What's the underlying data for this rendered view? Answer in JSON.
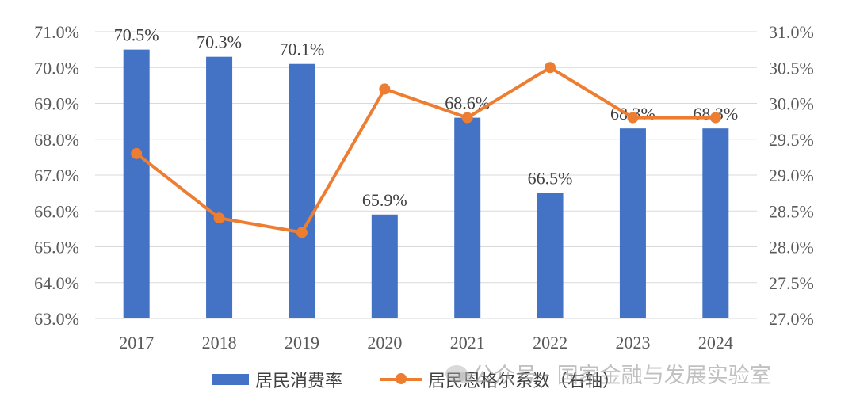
{
  "chart_data": {
    "type": "bar+line",
    "categories": [
      "2017",
      "2018",
      "2019",
      "2020",
      "2021",
      "2022",
      "2023",
      "2024"
    ],
    "series": [
      {
        "name": "居民消费率",
        "type": "bar",
        "axis": "left",
        "values": [
          70.5,
          70.3,
          70.1,
          65.9,
          68.6,
          66.5,
          68.3,
          68.3
        ],
        "labels": [
          "70.5%",
          "70.3%",
          "70.1%",
          "65.9%",
          "68.6%",
          "66.5%",
          "68.3%",
          "68.3%"
        ],
        "color": "#4472C4"
      },
      {
        "name": "居民恩格尔系数（右轴）",
        "type": "line",
        "axis": "right",
        "values": [
          29.3,
          28.4,
          28.2,
          30.2,
          29.8,
          30.5,
          29.8,
          29.8
        ],
        "color": "#ED7D31"
      }
    ],
    "left_axis": {
      "ylim": [
        63,
        71
      ],
      "ticks": [
        "63.0%",
        "64.0%",
        "65.0%",
        "66.0%",
        "67.0%",
        "68.0%",
        "69.0%",
        "70.0%",
        "71.0%"
      ]
    },
    "right_axis": {
      "ylim": [
        27,
        31
      ],
      "ticks": [
        "27.0%",
        "27.5%",
        "28.0%",
        "28.5%",
        "29.0%",
        "29.5%",
        "30.0%",
        "30.5%",
        "31.0%"
      ]
    },
    "grid": true,
    "legend_position": "bottom"
  },
  "legend": {
    "bar_label": "居民消费率",
    "line_label": "居民恩格尔系数（右轴）"
  },
  "watermark": "公众号 · 国家金融与发展实验室",
  "colors": {
    "bar": "#4472C4",
    "line": "#ED7D31",
    "grid": "#D9D9D9"
  }
}
